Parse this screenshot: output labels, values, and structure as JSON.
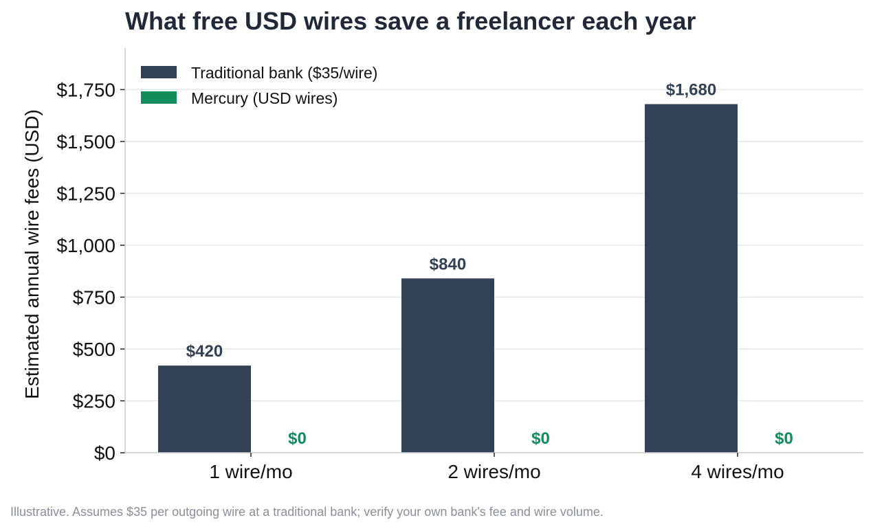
{
  "chart_data": {
    "type": "bar",
    "title": "What free USD wires save a freelancer each year",
    "xlabel": "",
    "ylabel": "Estimated annual wire fees (USD)",
    "categories": [
      "1 wire/mo",
      "2 wires/mo",
      "4 wires/mo"
    ],
    "series": [
      {
        "name": "Traditional bank ($35/wire)",
        "color": "#334155",
        "values": [
          420,
          840,
          1680
        ],
        "labels": [
          "$420",
          "$840",
          "$1,680"
        ]
      },
      {
        "name": "Mercury (USD wires)",
        "color": "#118c5a",
        "values": [
          0,
          0,
          0
        ],
        "labels": [
          "$0",
          "$0",
          "$0"
        ]
      }
    ],
    "ylim": [
      0,
      1950
    ],
    "yticks": [
      0,
      250,
      500,
      750,
      1000,
      1250,
      1500,
      1750
    ],
    "ytick_labels": [
      "$0",
      "$250",
      "$500",
      "$750",
      "$1,000",
      "$1,250",
      "$1,500",
      "$1,750"
    ],
    "grid": "horizontal",
    "legend": "top-left"
  },
  "footnote": "Illustrative. Assumes $35 per outgoing wire at a traditional bank; verify your own bank's fee and wire volume."
}
